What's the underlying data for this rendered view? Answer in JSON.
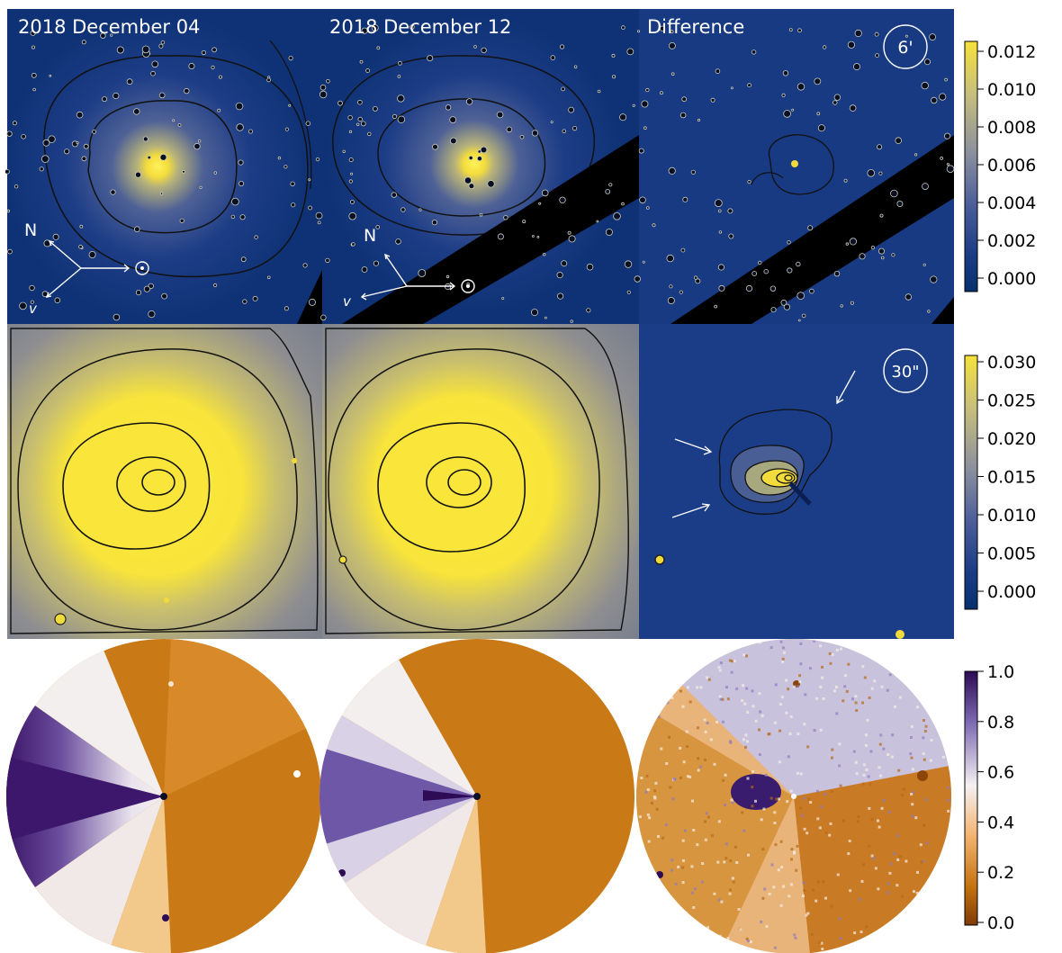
{
  "panels": {
    "col1_title": "2018 December 04",
    "col2_title": "2018 December 12",
    "col3_title": "Difference",
    "scale_row1": "6'",
    "scale_row2": "30\""
  },
  "compass": {
    "north": "N",
    "velocity": "v"
  },
  "colorbars": [
    {
      "id": "row1",
      "ticks": [
        "0.012",
        "0.010",
        "0.008",
        "0.006",
        "0.004",
        "0.002",
        "0.000"
      ],
      "colormap": [
        "#f6e13a",
        "#c9c07a",
        "#8a8f9e",
        "#4c5f9a",
        "#1b3c86",
        "#07306e"
      ]
    },
    {
      "id": "row2",
      "ticks": [
        "0.030",
        "0.025",
        "0.020",
        "0.015",
        "0.010",
        "0.005",
        "0.000"
      ],
      "colormap": [
        "#f6e13a",
        "#c9c07a",
        "#8a8f9e",
        "#4c5f9a",
        "#1b3c86",
        "#07306e"
      ]
    },
    {
      "id": "row3",
      "ticks": [
        "1.0",
        "0.8",
        "0.6",
        "0.4",
        "0.2",
        "0.0"
      ],
      "colormap": [
        "#2d0b55",
        "#7d69b2",
        "#f5f0f2",
        "#f2b36f",
        "#c4720e",
        "#7f3b08"
      ]
    }
  ]
}
